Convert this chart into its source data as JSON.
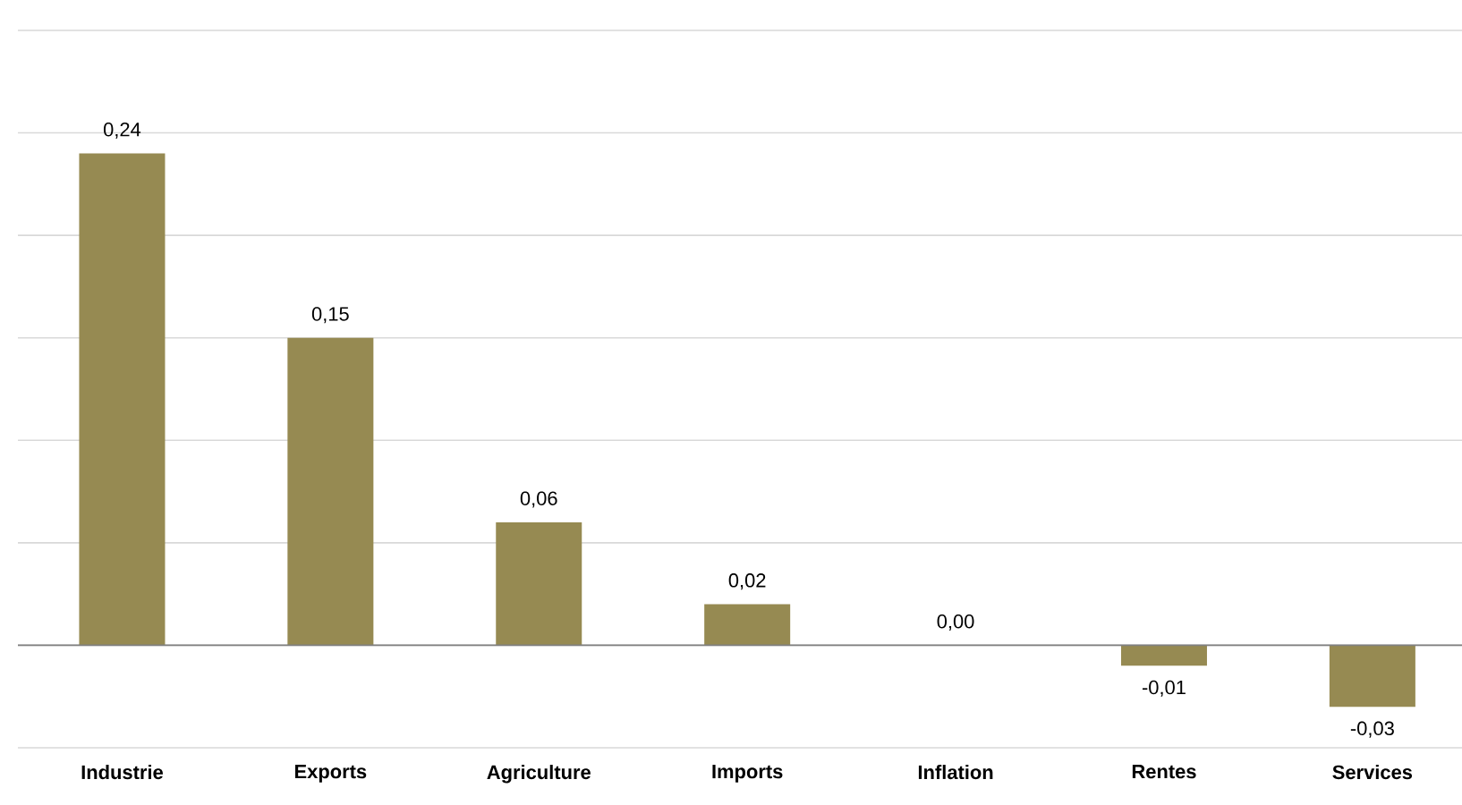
{
  "chart_data": {
    "type": "bar",
    "categories": [
      "Industrie",
      "Exports",
      "Agriculture",
      "Imports",
      "Inflation",
      "Rentes",
      "Services"
    ],
    "values": [
      0.24,
      0.15,
      0.06,
      0.02,
      0.0,
      -0.01,
      -0.03
    ],
    "value_labels": [
      "0,24",
      "0,15",
      "0,06",
      "0,02",
      "0,00",
      "-0,01",
      "-0,03"
    ],
    "color": "#968a52",
    "ylim": [
      -0.05,
      0.3
    ],
    "yticks": [
      {
        "value": -0.05,
        "label": null
      },
      {
        "value": 0,
        "label": null
      },
      {
        "value": 0.05,
        "label": null
      },
      {
        "value": 0.1,
        "label": null
      },
      {
        "value": 0.15,
        "label": null
      },
      {
        "value": 0.2,
        "label": null
      },
      {
        "value": 0.25,
        "label": null
      },
      {
        "value": 0.3,
        "label": null
      }
    ],
    "grid": "y",
    "tick_labels": "x"
  }
}
